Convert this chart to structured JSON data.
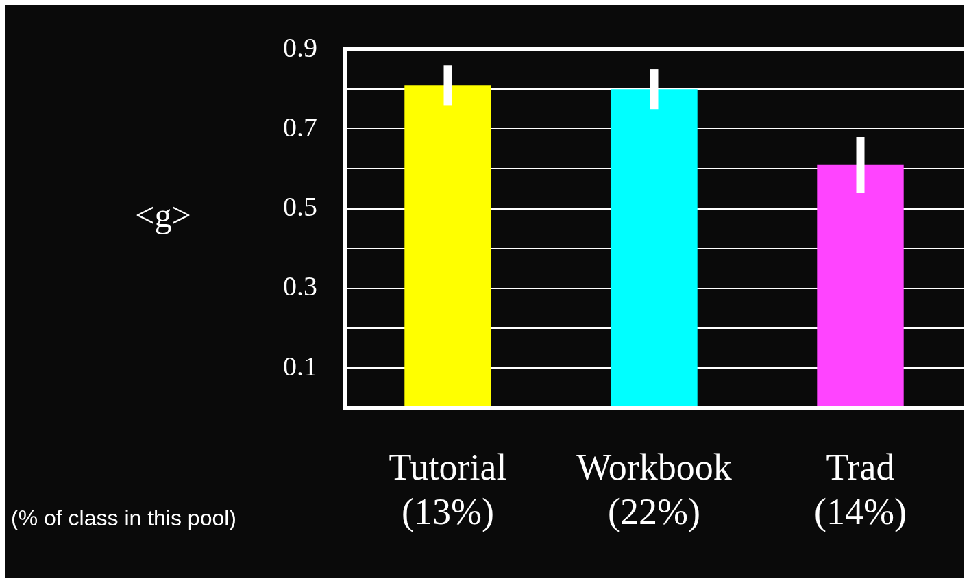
{
  "chart_data": {
    "type": "bar",
    "ylabel": "<g>",
    "annotations": [
      "(% of class in this pool)"
    ],
    "categories": [
      "Tutorial\n(13%)",
      "Workbook\n(22%)",
      "Trad\n(14%)"
    ],
    "values": [
      0.81,
      0.8,
      0.61
    ],
    "errors": [
      0.05,
      0.05,
      0.07
    ],
    "colors": [
      "#ffff00",
      "#00ffff",
      "#ff44ff"
    ],
    "ylim": [
      0,
      0.9
    ],
    "yticks": [
      {
        "value": 0.1,
        "label": "0.1"
      },
      {
        "value": 0.2,
        "label": null
      },
      {
        "value": 0.3,
        "label": "0.3"
      },
      {
        "value": 0.4,
        "label": null
      },
      {
        "value": 0.5,
        "label": "0.5"
      },
      {
        "value": 0.6,
        "label": null
      },
      {
        "value": 0.7,
        "label": "0.7"
      },
      {
        "value": 0.8,
        "label": null
      },
      {
        "value": 0.9,
        "label": "0.9"
      }
    ],
    "grid": "y"
  }
}
